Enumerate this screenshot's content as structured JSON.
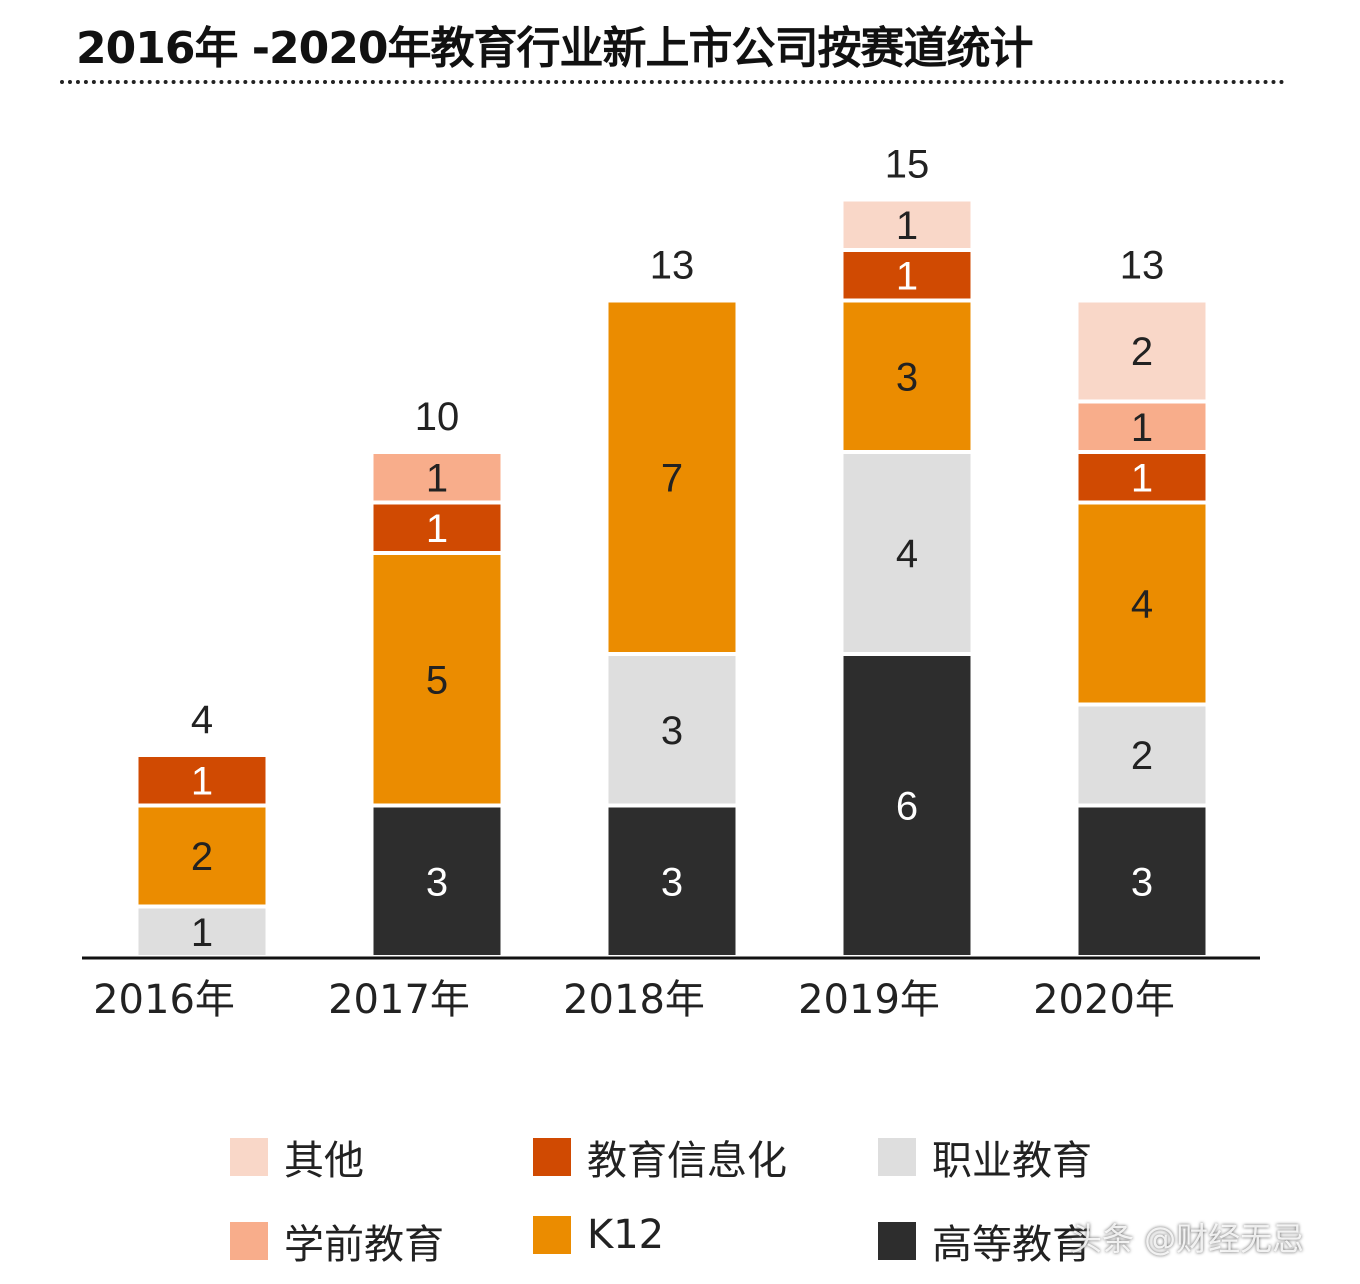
{
  "chart_data": {
    "type": "bar",
    "stacked": true,
    "title": "2016年 -2020年教育行业新上市公司按赛道统计",
    "categories": [
      "2016年",
      "2017年",
      "2018年",
      "2019年",
      "2020年"
    ],
    "totals": [
      4,
      10,
      13,
      15,
      13
    ],
    "series": [
      {
        "name": "高等教育",
        "color": "#2d2d2d",
        "values": [
          0,
          3,
          3,
          6,
          3
        ]
      },
      {
        "name": "职业教育",
        "color": "#dedede",
        "values": [
          1,
          0,
          3,
          4,
          2
        ]
      },
      {
        "name": "K12",
        "color": "#eb8c00",
        "values": [
          2,
          5,
          7,
          3,
          4
        ]
      },
      {
        "name": "教育信息化",
        "color": "#d04a02",
        "values": [
          1,
          1,
          0,
          1,
          1
        ]
      },
      {
        "name": "学前教育",
        "color": "#f8ad8b",
        "values": [
          0,
          1,
          0,
          0,
          1
        ]
      },
      {
        "name": "其他",
        "color": "#f9d7c8",
        "values": [
          0,
          0,
          0,
          1,
          2
        ]
      }
    ],
    "ylim": [
      0,
      15
    ],
    "grid": false,
    "legend_position": "bottom",
    "legend_order": [
      "其他",
      "教育信息化",
      "职业教育",
      "学前教育",
      "K12",
      "高等教育"
    ]
  },
  "watermark": "头条 @财经无忌"
}
